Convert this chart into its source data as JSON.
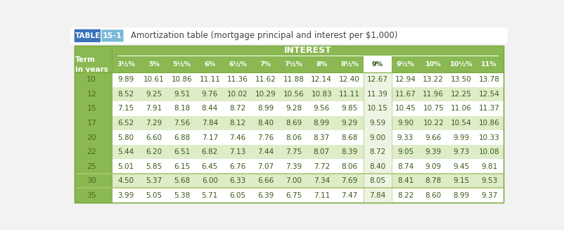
{
  "title_table": "TABLE",
  "title_num": "15-1",
  "title_desc": "Amortization table (mortgage principal and interest per $1,000)",
  "section_header": "INTEREST",
  "col_headers": [
    "Term\nin years",
    "3½%",
    "5%",
    "5½%",
    "6%",
    "6½%",
    "7%",
    "7½%",
    "8%",
    "8½%",
    "9%",
    "9½%",
    "10%",
    "10½%",
    "11%"
  ],
  "rows": [
    [
      10,
      9.89,
      10.61,
      10.86,
      11.11,
      11.36,
      11.62,
      11.88,
      12.14,
      12.4,
      12.67,
      12.94,
      13.22,
      13.5,
      13.78
    ],
    [
      12,
      8.52,
      9.25,
      9.51,
      9.76,
      10.02,
      10.29,
      10.56,
      10.83,
      11.11,
      11.39,
      11.67,
      11.96,
      12.25,
      12.54
    ],
    [
      15,
      7.15,
      7.91,
      8.18,
      8.44,
      8.72,
      8.99,
      9.28,
      9.56,
      9.85,
      10.15,
      10.45,
      10.75,
      11.06,
      11.37
    ],
    [
      17,
      6.52,
      7.29,
      7.56,
      7.84,
      8.12,
      8.4,
      8.69,
      8.99,
      9.29,
      9.59,
      9.9,
      10.22,
      10.54,
      10.86
    ],
    [
      20,
      5.8,
      6.6,
      6.88,
      7.17,
      7.46,
      7.76,
      8.06,
      8.37,
      8.68,
      9.0,
      9.33,
      9.66,
      9.99,
      10.33
    ],
    [
      22,
      5.44,
      6.2,
      6.51,
      6.82,
      7.13,
      7.44,
      7.75,
      8.07,
      8.39,
      8.72,
      9.05,
      9.39,
      9.73,
      10.08
    ],
    [
      25,
      5.01,
      5.85,
      6.15,
      6.45,
      6.76,
      7.07,
      7.39,
      7.72,
      8.06,
      8.4,
      8.74,
      9.09,
      9.45,
      9.81
    ],
    [
      30,
      4.5,
      5.37,
      5.68,
      6.0,
      6.33,
      6.66,
      7.0,
      7.34,
      7.69,
      8.05,
      8.41,
      8.78,
      9.15,
      9.53
    ],
    [
      35,
      3.99,
      5.05,
      5.38,
      5.71,
      6.05,
      6.39,
      6.75,
      7.11,
      7.47,
      7.84,
      8.22,
      8.6,
      8.99,
      9.37
    ]
  ],
  "green_bg": "#8ab852",
  "white_bg": "#ffffff",
  "light_green1": "#f0f5e8",
  "light_green2": "#deecc8",
  "highlight_col_bg_header": "#ffffff",
  "highlight_col_bg_data": "#eef4e4",
  "highlight_col_idx": 10,
  "header_text_color": "#ffffff",
  "data_text_color": "#3a5a1a",
  "term_col_text": "#4a6a20",
  "row30_line_color": "#aac870",
  "title_bg_table": "#3a72b8",
  "title_bg_num": "#78b8d8",
  "outer_border": "#78aa3a",
  "fig_bg": "#f2f2f2"
}
